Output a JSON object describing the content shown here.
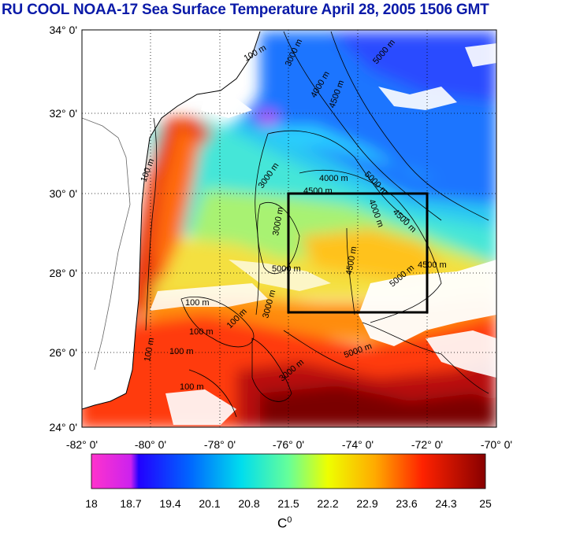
{
  "title": "RU COOL  NOAA-17 Sea Surface Temperature April 28, 2005 1506 GMT",
  "lat_ticks": [
    "34° 0'",
    "32° 0'",
    "30° 0'",
    "28° 0'",
    "26° 0'",
    "24° 0'"
  ],
  "lon_ticks": [
    "-82° 0'",
    "-80° 0'",
    "-78° 0'",
    "-76° 0'",
    "-74° 0'",
    "-72° 0'",
    "-70° 0'"
  ],
  "colorbar": {
    "ticks": [
      "18",
      "18.7",
      "19.4",
      "20.1",
      "20.8",
      "21.5",
      "22.2",
      "22.9",
      "23.6",
      "24.3",
      "25"
    ],
    "unit_base": "C",
    "unit_sup": "0",
    "colors": [
      "#ff33cc",
      "#cc22ee",
      "#2200ff",
      "#0055ff",
      "#00aaff",
      "#00eedd",
      "#88ff66",
      "#eeff00",
      "#ffaa00",
      "#ff4400",
      "#cc0000",
      "#880000"
    ]
  },
  "contours": [
    {
      "text": "100 m"
    },
    {
      "text": "3000 m"
    },
    {
      "text": "5000 m"
    },
    {
      "text": "4000 m"
    },
    {
      "text": "4500 m"
    },
    {
      "text": "100 m"
    },
    {
      "text": "3000 m"
    },
    {
      "text": "4000 m"
    },
    {
      "text": "4500 m"
    },
    {
      "text": "5000 m"
    },
    {
      "text": "4000 m"
    },
    {
      "text": "4500 m"
    },
    {
      "text": "4500 m"
    },
    {
      "text": "5000 m"
    },
    {
      "text": "4500 m"
    },
    {
      "text": "5000 m"
    },
    {
      "text": "100 m"
    },
    {
      "text": "100 m"
    },
    {
      "text": "100 m"
    },
    {
      "text": "100 m"
    },
    {
      "text": "100 m"
    },
    {
      "text": "3000 m"
    },
    {
      "text": "5000 m"
    },
    {
      "text": "3000 m"
    },
    {
      "text": "100 m"
    },
    {
      "text": "3000 m"
    }
  ]
}
